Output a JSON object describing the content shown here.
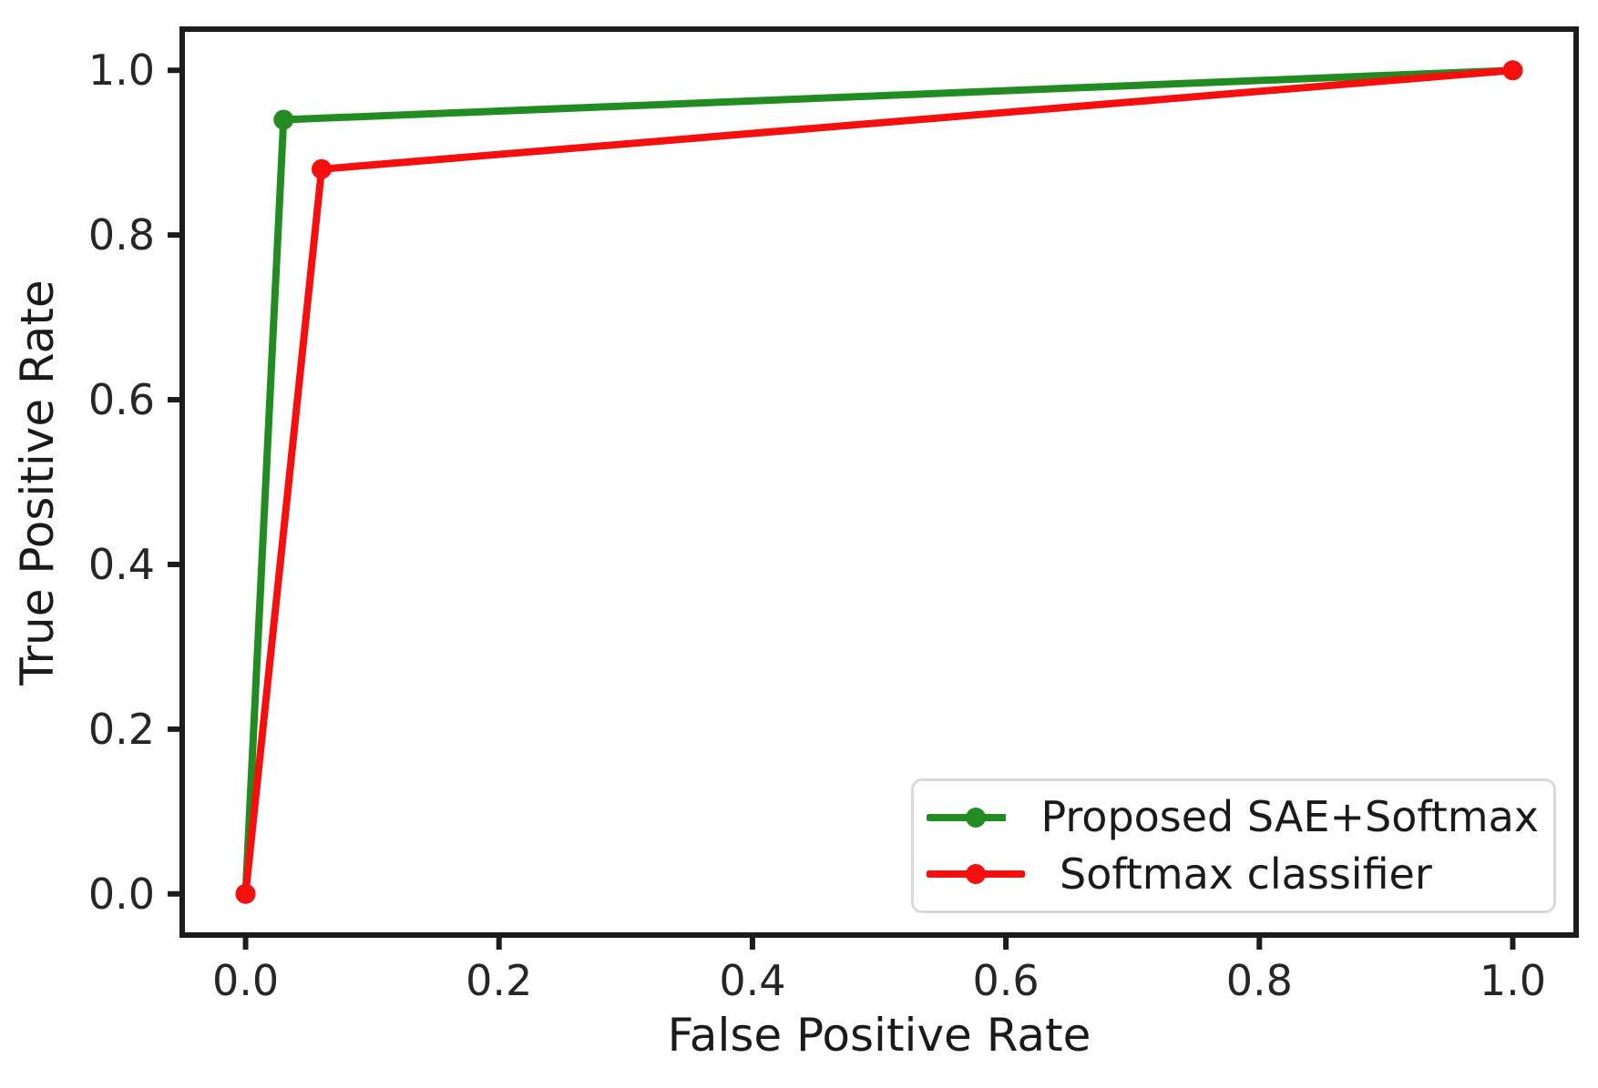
{
  "chart_data": {
    "type": "line",
    "title": "",
    "xlabel": "False Positive Rate",
    "ylabel": "True Positive Rate",
    "xlim": [
      -0.05,
      1.05
    ],
    "ylim": [
      -0.05,
      1.05
    ],
    "x_ticks": [
      0.0,
      0.2,
      0.4,
      0.6,
      0.8,
      1.0
    ],
    "x_tick_labels": [
      "0.0",
      "0.2",
      "0.4",
      "0.6",
      "0.8",
      "1.0"
    ],
    "y_ticks": [
      0.0,
      0.2,
      0.4,
      0.6,
      0.8,
      1.0
    ],
    "y_tick_labels": [
      "0.0",
      "0.2",
      "0.4",
      "0.6",
      "0.8",
      "1.0"
    ],
    "grid": false,
    "legend_position": "lower-right",
    "series": [
      {
        "name": "Proposed SAE+Softmax",
        "color": "#228b22",
        "marker": "circle",
        "points": [
          {
            "x": 0.0,
            "y": 0.0
          },
          {
            "x": 0.03,
            "y": 0.94
          },
          {
            "x": 1.0,
            "y": 1.0
          }
        ]
      },
      {
        "name": "Softmax classifier",
        "color": "#f50f0f",
        "marker": "circle",
        "points": [
          {
            "x": 0.0,
            "y": 0.0
          },
          {
            "x": 0.06,
            "y": 0.88
          },
          {
            "x": 1.0,
            "y": 1.0
          }
        ]
      }
    ],
    "colors": {
      "spine": "#1c1c1c",
      "tick_label": "#262626",
      "axis_label": "#1a1a1a",
      "legend_border": "#d9d9d9",
      "background": "#ffffff"
    }
  }
}
